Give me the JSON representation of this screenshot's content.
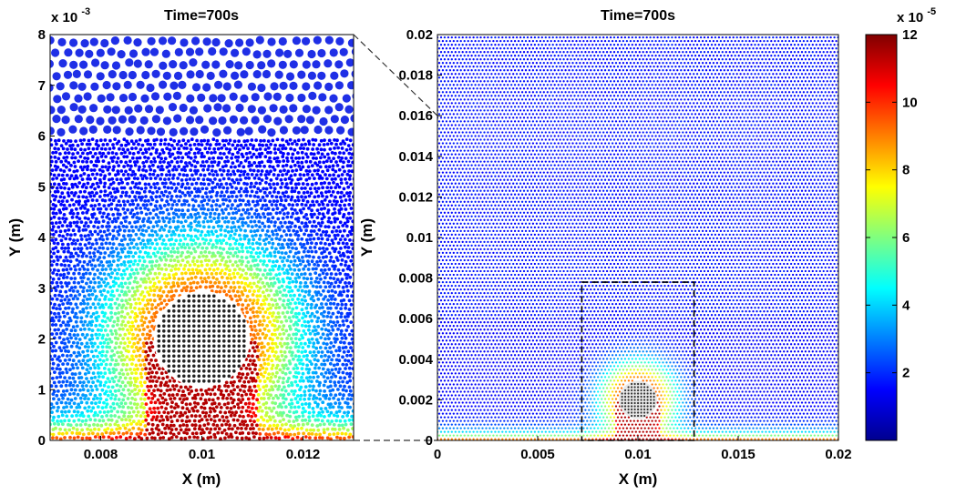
{
  "chart_data": [
    {
      "type": "scatter",
      "title": "Time=700s",
      "xlabel": "X (m)",
      "ylabel": "Y (m)",
      "xlim": [
        0.007,
        0.013
      ],
      "ylim": [
        0,
        0.008
      ],
      "x_ticks": [
        0.008,
        0.01,
        0.012
      ],
      "x_tick_labels": [
        "0.008",
        "0.01",
        "0.012"
      ],
      "y_ticks": [
        0,
        1,
        2,
        3,
        4,
        5,
        6,
        7,
        8
      ],
      "y_tick_labels": [
        "0",
        "1",
        "2",
        "3",
        "4",
        "5",
        "6",
        "7",
        "8"
      ],
      "y_multiplier": "x 10",
      "y_multiplier_exp": "-3",
      "obstacle": {
        "shape": "circle",
        "center": [
          0.01,
          0.002
        ],
        "radius": 0.00095
      },
      "coarse_layer_bottom": 0.006,
      "colormap": "jet"
    },
    {
      "type": "scatter",
      "title": "Time=700s",
      "xlabel": "X (m)",
      "ylabel": "Y (m)",
      "xlim": [
        0,
        0.02
      ],
      "ylim": [
        0,
        0.02
      ],
      "x_ticks": [
        0,
        0.005,
        0.01,
        0.015,
        0.02
      ],
      "x_tick_labels": [
        "0",
        "0.005",
        "0.01",
        "0.015",
        "0.02"
      ],
      "y_ticks": [
        0,
        0.002,
        0.004,
        0.006,
        0.008,
        0.01,
        0.012,
        0.014,
        0.016,
        0.018,
        0.02
      ],
      "y_tick_labels": [
        "0",
        "0.002",
        "0.004",
        "0.006",
        "0.008",
        "0.01",
        "0.012",
        "0.014",
        "0.016",
        "0.018",
        "0.02"
      ],
      "obstacle": {
        "shape": "circle",
        "center": [
          0.01,
          0.002
        ],
        "radius": 0.00095
      },
      "zoom_box": {
        "x": [
          0.0072,
          0.0128
        ],
        "y": [
          0,
          0.0078
        ]
      },
      "colormap": "jet"
    }
  ],
  "colorbar": {
    "multiplier": "x 10",
    "multiplier_exp": "-5",
    "range": [
      0,
      12
    ],
    "ticks": [
      2,
      4,
      6,
      8,
      10,
      12
    ],
    "tick_labels": [
      "2",
      "4",
      "6",
      "8",
      "10",
      "12"
    ],
    "colormap": "jet"
  }
}
